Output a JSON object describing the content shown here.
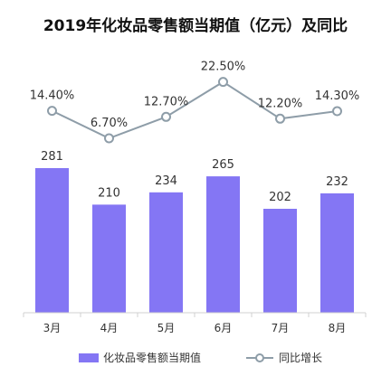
{
  "chart_data": {
    "type": "bar",
    "title": "2019年化妆品零售额当期值（亿元）及同比",
    "categories": [
      "3月",
      "4月",
      "5月",
      "6月",
      "7月",
      "8月"
    ],
    "series": [
      {
        "name": "化妆品零售额当期值",
        "type": "bar",
        "values": [
          281,
          210,
          234,
          265,
          202,
          232
        ],
        "labels": [
          "281",
          "210",
          "234",
          "265",
          "202",
          "232"
        ],
        "color": "#8476F4"
      },
      {
        "name": "同比增长",
        "type": "line",
        "values": [
          14.4,
          6.7,
          12.7,
          22.5,
          12.2,
          14.3
        ],
        "labels": [
          "14.40%",
          "6.70%",
          "12.70%",
          "22.50%",
          "12.20%",
          "14.30%"
        ],
        "color": "#8E9DA8"
      }
    ],
    "legend_position": "bottom",
    "grid": false
  }
}
